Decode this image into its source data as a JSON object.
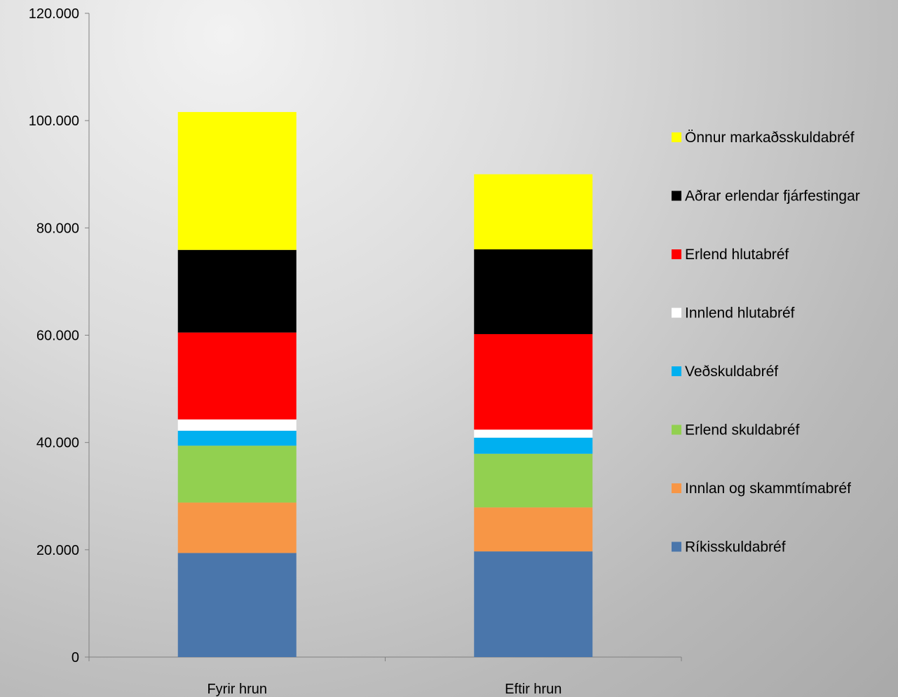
{
  "chart_data": {
    "type": "bar",
    "stacked": true,
    "categories": [
      "Fyrir hrun",
      "Eftir hrun"
    ],
    "series": [
      {
        "name": "Ríkisskuldabréf",
        "color": "#4a76ab",
        "values": [
          19400,
          19700
        ]
      },
      {
        "name": "Innlan og skammtímabréf",
        "color": "#f79646",
        "values": [
          9400,
          8200
        ]
      },
      {
        "name": "Erlend skuldabréf",
        "color": "#92d050",
        "values": [
          10600,
          10000
        ]
      },
      {
        "name": "Veðskuldabréf",
        "color": "#00b0f0",
        "values": [
          2800,
          3000
        ]
      },
      {
        "name": "Innlend hlutabréf",
        "color": "#ffffff",
        "values": [
          2100,
          1500
        ]
      },
      {
        "name": "Erlend hlutabréf",
        "color": "#ff0000",
        "values": [
          16200,
          17800
        ]
      },
      {
        "name": "Aðrar erlendar fjárfestingar",
        "color": "#000000",
        "values": [
          15400,
          15800
        ]
      },
      {
        "name": "Önnur markaðsskuldabréf",
        "color": "#ffff00",
        "values": [
          25700,
          14000
        ]
      }
    ],
    "yticks": [
      "0",
      "20.000",
      "40.000",
      "60.000",
      "80.000",
      "100.000",
      "120.000"
    ],
    "ylim": [
      0,
      120000
    ],
    "grid": false,
    "legend_position": "right"
  }
}
